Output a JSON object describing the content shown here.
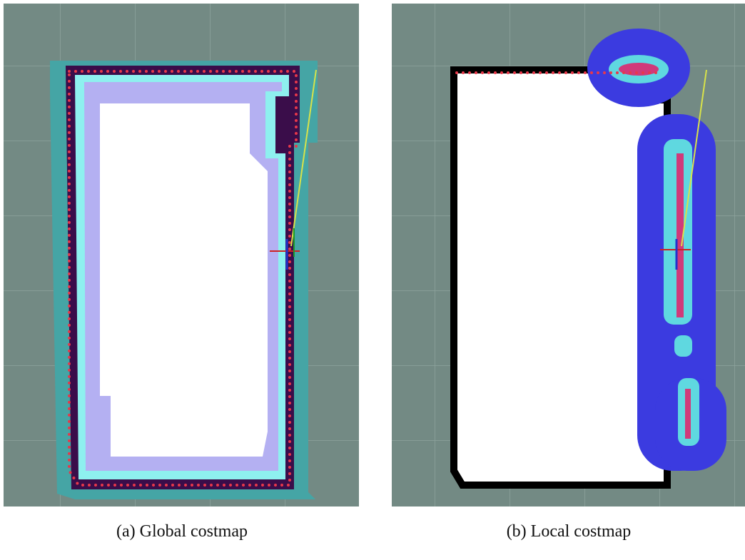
{
  "panels": [
    {
      "caption": "(a) Global costmap"
    },
    {
      "caption": "(b) Local costmap"
    }
  ]
}
